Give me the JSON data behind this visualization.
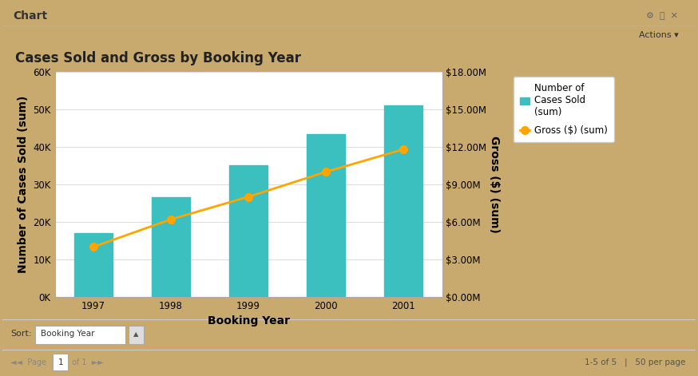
{
  "title": "Cases Sold and Gross by Booking Year",
  "xlabel": "Booking Year",
  "ylabel_left": "Number of Cases Sold (sum)",
  "ylabel_right": "Gross ($) (sum)",
  "categories": [
    "1997",
    "1998",
    "1999",
    "2000",
    "2001"
  ],
  "bar_values": [
    17000,
    26500,
    35000,
    43500,
    51000
  ],
  "line_values": [
    4000000,
    6200000,
    8000000,
    10000000,
    11800000
  ],
  "bar_color": "#3BBFBF",
  "line_color": "#FFA500",
  "bar_ylim": [
    0,
    60000
  ],
  "line_ylim": [
    0,
    18000000
  ],
  "bar_yticks": [
    0,
    10000,
    20000,
    30000,
    40000,
    50000,
    60000
  ],
  "bar_yticklabels": [
    "0K",
    "10K",
    "20K",
    "30K",
    "40K",
    "50K",
    "60K"
  ],
  "line_yticks": [
    0,
    3000000,
    6000000,
    9000000,
    12000000,
    15000000,
    18000000
  ],
  "line_yticklabels": [
    "$0.00M",
    "$3.00M",
    "$6.00M",
    "$9.00M",
    "$12.00M",
    "$15.00M",
    "$18.00M"
  ],
  "legend_bar_label": "Number of\nCases Sold\n(sum)",
  "legend_line_label": "Gross ($) (sum)",
  "bg_color": "#FFFFFF",
  "panel_bg": "#F5F5F5",
  "actions_bg": "#EEEEEE",
  "grid_color": "#DDDDDD",
  "title_fontsize": 12,
  "axis_label_fontsize": 10,
  "tick_fontsize": 8.5,
  "legend_fontsize": 8.5,
  "bar_width": 0.5,
  "line_marker": "o",
  "line_marker_size": 7,
  "line_width": 2.0,
  "outer_border_color": "#C8A96E",
  "inner_border_color": "#CCCCCC",
  "header_bg": "#F0F0F0",
  "sort_bar_bg": "#F0F0F0",
  "page_bar_bg": "#E8E8E8"
}
